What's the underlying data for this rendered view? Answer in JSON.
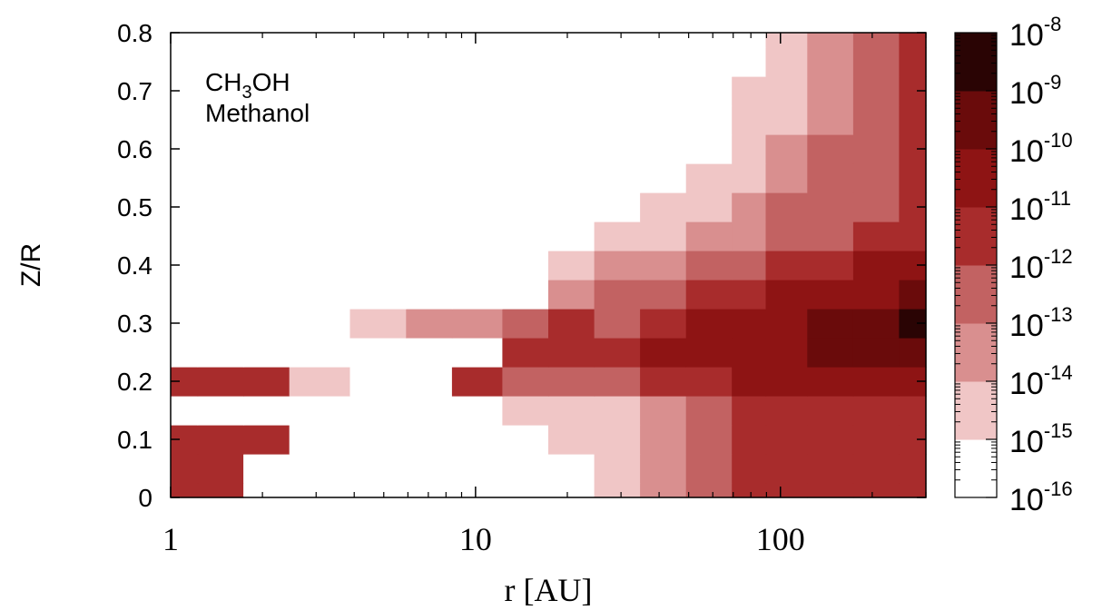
{
  "chart_data": {
    "type": "heatmap",
    "title": "",
    "annotation": {
      "formula": {
        "main": "CH",
        "subscript": "3",
        "tail": "OH"
      },
      "name": "Methanol"
    },
    "xlabel": "r [AU]",
    "ylabel": "Z/R",
    "x_scale": "log",
    "xlim": [
      1,
      300
    ],
    "ylim": [
      0,
      0.8
    ],
    "x_ticks": [
      {
        "value": 1,
        "label": "1"
      },
      {
        "value": 10,
        "label": "10"
      },
      {
        "value": 100,
        "label": "100"
      }
    ],
    "y_ticks": [
      {
        "value": 0,
        "label": "0"
      },
      {
        "value": 0.1,
        "label": "0.1"
      },
      {
        "value": 0.2,
        "label": "0.2"
      },
      {
        "value": 0.3,
        "label": "0.3"
      },
      {
        "value": 0.4,
        "label": "0.4"
      },
      {
        "value": 0.5,
        "label": "0.5"
      },
      {
        "value": 0.6,
        "label": "0.6"
      },
      {
        "value": 0.7,
        "label": "0.7"
      },
      {
        "value": 0.8,
        "label": "0.8"
      }
    ],
    "colorbar": {
      "scale": "log",
      "range_exponents": [
        -16,
        -8
      ],
      "ticks": [
        {
          "exponent": -8,
          "label_base": "10",
          "label_exp": "-8"
        },
        {
          "exponent": -9,
          "label_base": "10",
          "label_exp": "-9"
        },
        {
          "exponent": -10,
          "label_base": "10",
          "label_exp": "-10"
        },
        {
          "exponent": -11,
          "label_base": "10",
          "label_exp": "-11"
        },
        {
          "exponent": -12,
          "label_base": "10",
          "label_exp": "-12"
        },
        {
          "exponent": -13,
          "label_base": "10",
          "label_exp": "-13"
        },
        {
          "exponent": -14,
          "label_base": "10",
          "label_exp": "-14"
        },
        {
          "exponent": -15,
          "label_base": "10",
          "label_exp": "-15"
        },
        {
          "exponent": -16,
          "label_base": "10",
          "label_exp": "-16"
        }
      ],
      "bands": [
        {
          "from": -16,
          "to": -15,
          "color": "#ffffff"
        },
        {
          "from": -15,
          "to": -14,
          "color": "#f0c6c6"
        },
        {
          "from": -14,
          "to": -13,
          "color": "#d98f8f"
        },
        {
          "from": -13,
          "to": -12,
          "color": "#c26262"
        },
        {
          "from": -12,
          "to": -11,
          "color": "#a82c2c"
        },
        {
          "from": -11,
          "to": -10,
          "color": "#8e1414"
        },
        {
          "from": -10,
          "to": -9,
          "color": "#6a0b0b"
        },
        {
          "from": -9,
          "to": -8,
          "color": "#2a0404"
        }
      ]
    },
    "field_log_abundance": {
      "note_levels": "log10 abundance at sampled (r, Z/R) points",
      "r": [
        1,
        1.5,
        2,
        3,
        5,
        7,
        10,
        15,
        20,
        30,
        40,
        60,
        80,
        100,
        150,
        200,
        300
      ],
      "z": [
        0,
        0.05,
        0.1,
        0.15,
        0.2,
        0.25,
        0.3,
        0.35,
        0.4,
        0.45,
        0.5,
        0.55,
        0.6,
        0.65,
        0.7,
        0.75,
        0.8
      ],
      "values": [
        [
          -11.5,
          -11.5,
          -16,
          -16,
          -16,
          -16,
          -16,
          -15.5,
          -16,
          -14.5,
          -13.5,
          -12.5,
          -11.5,
          -11.5,
          -11.5,
          -11.5,
          -11.5
        ],
        [
          -11.5,
          -11.5,
          -16,
          -16,
          -16,
          -16,
          -16,
          -15.5,
          -15.5,
          -14.5,
          -13.5,
          -12.5,
          -11.5,
          -11.5,
          -11.5,
          -11.5,
          -11.5
        ],
        [
          -11.5,
          -11.5,
          -11.5,
          -16,
          -16,
          -16,
          -16,
          -15.5,
          -14.5,
          -14.5,
          -13.5,
          -12.5,
          -11.5,
          -11.5,
          -11.5,
          -11.5,
          -11.5
        ],
        [
          -16,
          -16,
          -16,
          -16,
          -16,
          -16,
          -16,
          -14.5,
          -14.5,
          -14.5,
          -13.5,
          -12.5,
          -11.5,
          -11.5,
          -11.5,
          -11.5,
          -11.5
        ],
        [
          -11.5,
          -11.5,
          -11.5,
          -14.5,
          -16,
          -16,
          -11.5,
          -12.5,
          -12.5,
          -12.5,
          -11.5,
          -11.5,
          -10.5,
          -10.5,
          -10.5,
          -10.5,
          -10.5
        ],
        [
          -16,
          -16,
          -16,
          -16,
          -16,
          -16,
          -16,
          -11.5,
          -11.5,
          -11.5,
          -10.5,
          -10.5,
          -10.5,
          -10.5,
          -9.5,
          -9.5,
          -9.5
        ],
        [
          -16,
          -16,
          -16,
          -16,
          -14.5,
          -13.5,
          -13.5,
          -12.5,
          -11.5,
          -12.5,
          -11.5,
          -10.5,
          -10.5,
          -10.5,
          -9.5,
          -9.5,
          -8.5
        ],
        [
          -16,
          -16,
          -16,
          -16,
          -16,
          -16,
          -16,
          -16,
          -13.5,
          -12.5,
          -12.5,
          -11.5,
          -11.5,
          -10.5,
          -10.5,
          -10.5,
          -9.5
        ],
        [
          -16,
          -16,
          -16,
          -16,
          -16,
          -16,
          -16,
          -16,
          -14.5,
          -13.5,
          -13.5,
          -12.5,
          -12.5,
          -11.5,
          -11.5,
          -10.5,
          -10.5
        ],
        [
          -16,
          -16,
          -16,
          -16,
          -16,
          -16,
          -16,
          -16,
          -16,
          -14.5,
          -14.5,
          -13.5,
          -13.5,
          -12.5,
          -12.5,
          -11.5,
          -11.5
        ],
        [
          -16,
          -16,
          -16,
          -16,
          -16,
          -16,
          -16,
          -16,
          -16,
          -16,
          -14.5,
          -14.5,
          -13.5,
          -12.5,
          -12.5,
          -12.5,
          -11.5
        ],
        [
          -16,
          -16,
          -16,
          -16,
          -16,
          -16,
          -16,
          -16,
          -16,
          -16,
          -16,
          -14.5,
          -14.5,
          -13.5,
          -12.5,
          -12.5,
          -11.5
        ],
        [
          -16,
          -16,
          -16,
          -16,
          -16,
          -16,
          -16,
          -16,
          -16,
          -16,
          -16,
          -16,
          -14.5,
          -13.5,
          -12.5,
          -12.5,
          -11.5
        ],
        [
          -16,
          -16,
          -16,
          -16,
          -16,
          -16,
          -16,
          -16,
          -16,
          -16,
          -16,
          -16,
          -14.5,
          -14.5,
          -13.5,
          -12.5,
          -11.5
        ],
        [
          -16,
          -16,
          -16,
          -16,
          -16,
          -16,
          -16,
          -16,
          -16,
          -16,
          -16,
          -16,
          -14.5,
          -14.5,
          -13.5,
          -12.5,
          -11.5
        ],
        [
          -16,
          -16,
          -16,
          -16,
          -16,
          -16,
          -16,
          -16,
          -16,
          -16,
          -16,
          -16,
          -16,
          -14.5,
          -13.5,
          -12.5,
          -11.5
        ],
        [
          -16,
          -16,
          -16,
          -16,
          -16,
          -16,
          -16,
          -16,
          -16,
          -16,
          -16,
          -16,
          -16,
          -14.5,
          -13.5,
          -12.5,
          -11.5
        ]
      ]
    }
  }
}
